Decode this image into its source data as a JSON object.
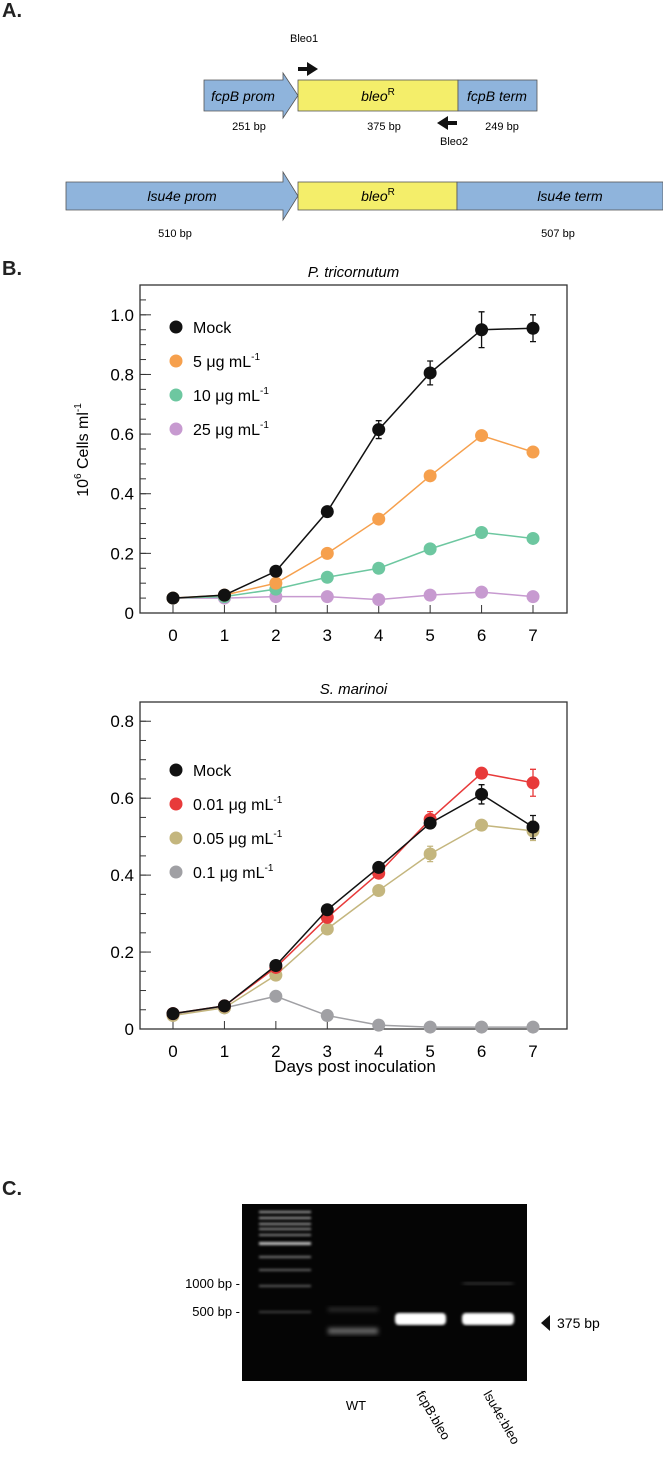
{
  "panels": {
    "a": "A.",
    "b": "B.",
    "c": "C."
  },
  "construct": {
    "colors": {
      "promoter": "#8fb4dc",
      "gene": "#f4ee6a",
      "border": "#555555"
    },
    "row1": {
      "prom": "fcpB prom",
      "gene": "bleo",
      "gene_sup": "R",
      "term": "fcpB term",
      "prom_len": "251 bp",
      "gene_len": "375 bp",
      "term_len": "249 bp",
      "primer_fwd": "Bleo1",
      "primer_rev": "Bleo2"
    },
    "row2": {
      "prom": "lsu4e prom",
      "gene": "bleo",
      "gene_sup": "R",
      "term": "lsu4e term",
      "prom_len": "510 bp",
      "term_len": "507 bp"
    }
  },
  "shared_axes": {
    "ylabel_base": "10",
    "ylabel_exp": "6",
    "ylabel_text": " Cells ml",
    "ylabel_exp2": "-1",
    "xlabel": "Days post inoculation"
  },
  "chart_data": [
    {
      "type": "line",
      "title": "P. tricornutum",
      "x": [
        0,
        1,
        2,
        3,
        4,
        5,
        6,
        7
      ],
      "xlim": [
        0,
        7
      ],
      "ylim": [
        0,
        1.1
      ],
      "yticks": [
        0,
        0.2,
        0.4,
        0.6,
        0.8,
        1.0
      ],
      "ytick_labels": [
        "0",
        "0.2",
        "0.4",
        "0.6",
        "0.8",
        "1.0"
      ],
      "legend_placement": "top-left",
      "series": [
        {
          "name": "Mock",
          "name_sup": "",
          "color": "#111111",
          "values": [
            0.05,
            0.06,
            0.14,
            0.34,
            0.615,
            0.805,
            0.95,
            0.955
          ],
          "errors": [
            0,
            0,
            0,
            0,
            0.03,
            0.04,
            0.06,
            0.045
          ]
        },
        {
          "name": "5 μg mL",
          "name_sup": "-1",
          "color": "#f6a04d",
          "values": [
            0.05,
            0.06,
            0.1,
            0.2,
            0.315,
            0.46,
            0.595,
            0.54
          ],
          "errors": [
            0,
            0,
            0,
            0,
            0,
            0,
            0,
            0
          ]
        },
        {
          "name": "10 μg mL",
          "name_sup": "-1",
          "color": "#6dc7a0",
          "values": [
            0.05,
            0.055,
            0.08,
            0.12,
            0.15,
            0.215,
            0.27,
            0.25
          ],
          "errors": [
            0,
            0,
            0,
            0,
            0,
            0,
            0,
            0
          ]
        },
        {
          "name": "25 μg mL",
          "name_sup": "-1",
          "color": "#c79ad0",
          "values": [
            0.05,
            0.05,
            0.055,
            0.055,
            0.045,
            0.06,
            0.07,
            0.055
          ],
          "errors": [
            0,
            0,
            0,
            0,
            0,
            0,
            0,
            0
          ]
        }
      ]
    },
    {
      "type": "line",
      "title": "S. marinoi",
      "x": [
        0,
        1,
        2,
        3,
        4,
        5,
        6,
        7
      ],
      "xlim": [
        0,
        7
      ],
      "ylim": [
        0,
        0.85
      ],
      "yticks": [
        0,
        0.2,
        0.4,
        0.6,
        0.8
      ],
      "ytick_labels": [
        "0",
        "0.2",
        "0.4",
        "0.6",
        "0.8"
      ],
      "legend_placement": "top-left",
      "series": [
        {
          "name": "Mock",
          "name_sup": "",
          "color": "#111111",
          "values": [
            0.04,
            0.06,
            0.165,
            0.31,
            0.42,
            0.535,
            0.61,
            0.525
          ],
          "errors": [
            0,
            0,
            0,
            0,
            0,
            0.01,
            0.025,
            0.03
          ]
        },
        {
          "name": "0.01 μg mL",
          "name_sup": "-1",
          "color": "#e83a3a",
          "values": [
            0.04,
            0.06,
            0.16,
            0.29,
            0.405,
            0.545,
            0.665,
            0.64
          ],
          "errors": [
            0,
            0,
            0,
            0,
            0.01,
            0.02,
            0,
            0.035
          ]
        },
        {
          "name": "0.05 μg mL",
          "name_sup": "-1",
          "color": "#c4b67e",
          "values": [
            0.035,
            0.055,
            0.14,
            0.26,
            0.36,
            0.455,
            0.53,
            0.515
          ],
          "errors": [
            0,
            0,
            0,
            0.01,
            0,
            0.02,
            0,
            0.025
          ]
        },
        {
          "name": "0.1 μg mL",
          "name_sup": "-1",
          "color": "#a0a0a4",
          "values": [
            0.04,
            0.055,
            0.085,
            0.035,
            0.01,
            0.005,
            0.005,
            0.005
          ],
          "errors": [
            0,
            0,
            0,
            0,
            0,
            0,
            0,
            0
          ]
        }
      ]
    }
  ],
  "gel": {
    "markers": [
      "1000 bp -",
      "500 bp -"
    ],
    "band_label": "375 bp",
    "lanes": [
      "WT",
      "fcpB:bleo",
      "lsu4e:bleo"
    ]
  }
}
